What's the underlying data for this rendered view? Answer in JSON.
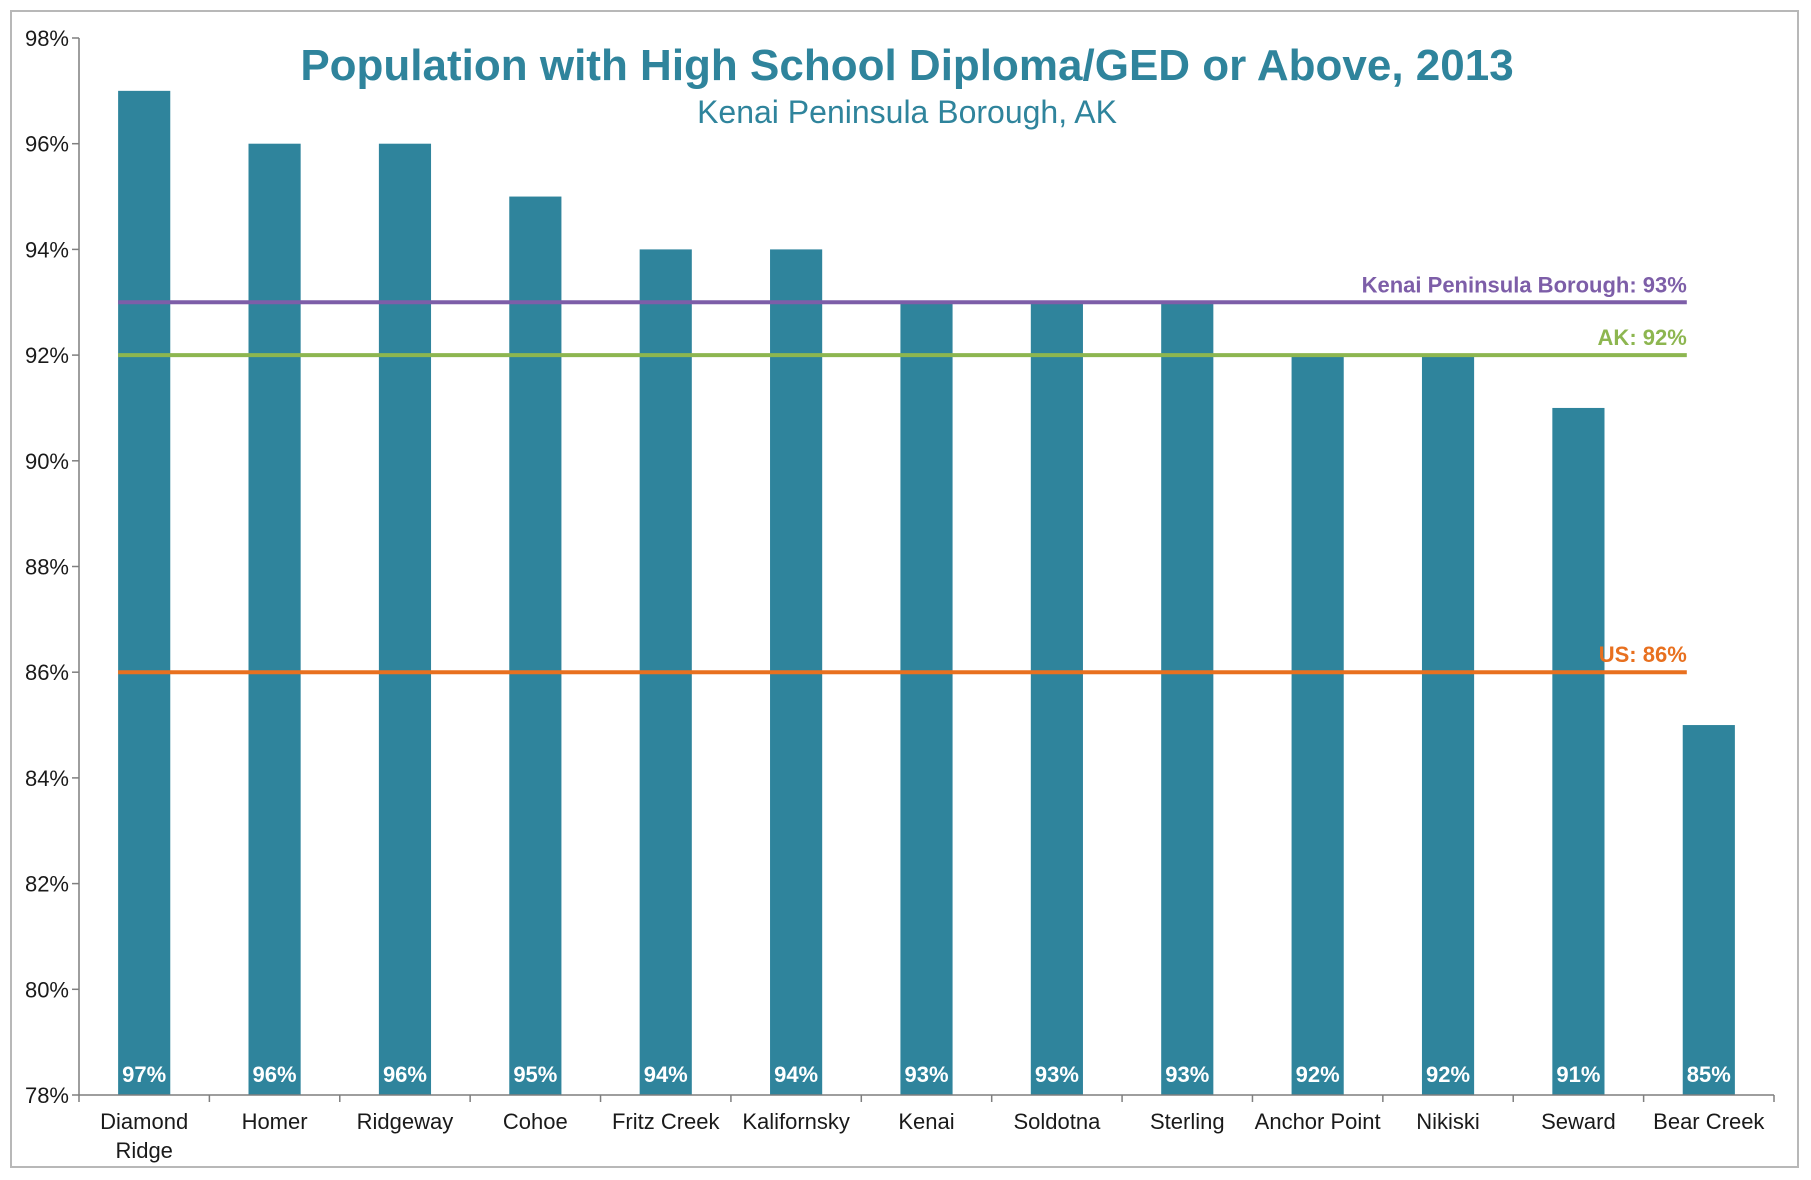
{
  "chart_data": {
    "type": "bar",
    "title": "Population with High School Diploma/GED or Above, 2013",
    "subtitle": "Kenai Peninsula Borough, AK",
    "categories": [
      [
        "Diamond",
        "Ridge"
      ],
      [
        "Homer"
      ],
      [
        "Ridgeway"
      ],
      [
        "Cohoe"
      ],
      [
        "Fritz Creek"
      ],
      [
        "Kalifornsky"
      ],
      [
        "Kenai"
      ],
      [
        "Soldotna"
      ],
      [
        "Sterling"
      ],
      [
        "Anchor Point"
      ],
      [
        "Nikiski"
      ],
      [
        "Seward"
      ],
      [
        "Bear Creek"
      ]
    ],
    "values": [
      97,
      96,
      96,
      95,
      94,
      94,
      93,
      93,
      93,
      92,
      92,
      91,
      85
    ],
    "value_labels": [
      "97%",
      "96%",
      "96%",
      "95%",
      "94%",
      "94%",
      "93%",
      "93%",
      "93%",
      "92%",
      "92%",
      "91%",
      "85%"
    ],
    "ylim": [
      78,
      98
    ],
    "yticks": [
      78,
      80,
      82,
      84,
      86,
      88,
      90,
      92,
      94,
      96,
      98
    ],
    "ytick_labels": [
      "78%",
      "80%",
      "82%",
      "84%",
      "86%",
      "88%",
      "90%",
      "92%",
      "94%",
      "96%",
      "98%"
    ],
    "reference_lines": [
      {
        "label": "Kenai Peninsula Borough: 93%",
        "value": 93,
        "color": "#7d5ea8"
      },
      {
        "label": "AK: 92%",
        "value": 92,
        "color": "#8db650"
      },
      {
        "label": "US: 86%",
        "value": 86,
        "color": "#e8701f"
      }
    ],
    "grid": false,
    "colors": {
      "bar": "#2f849c",
      "title": "#2f849c",
      "subtitle": "#2f849c",
      "axis": "#7f7f7f",
      "bar_label": "#ffffff"
    }
  }
}
